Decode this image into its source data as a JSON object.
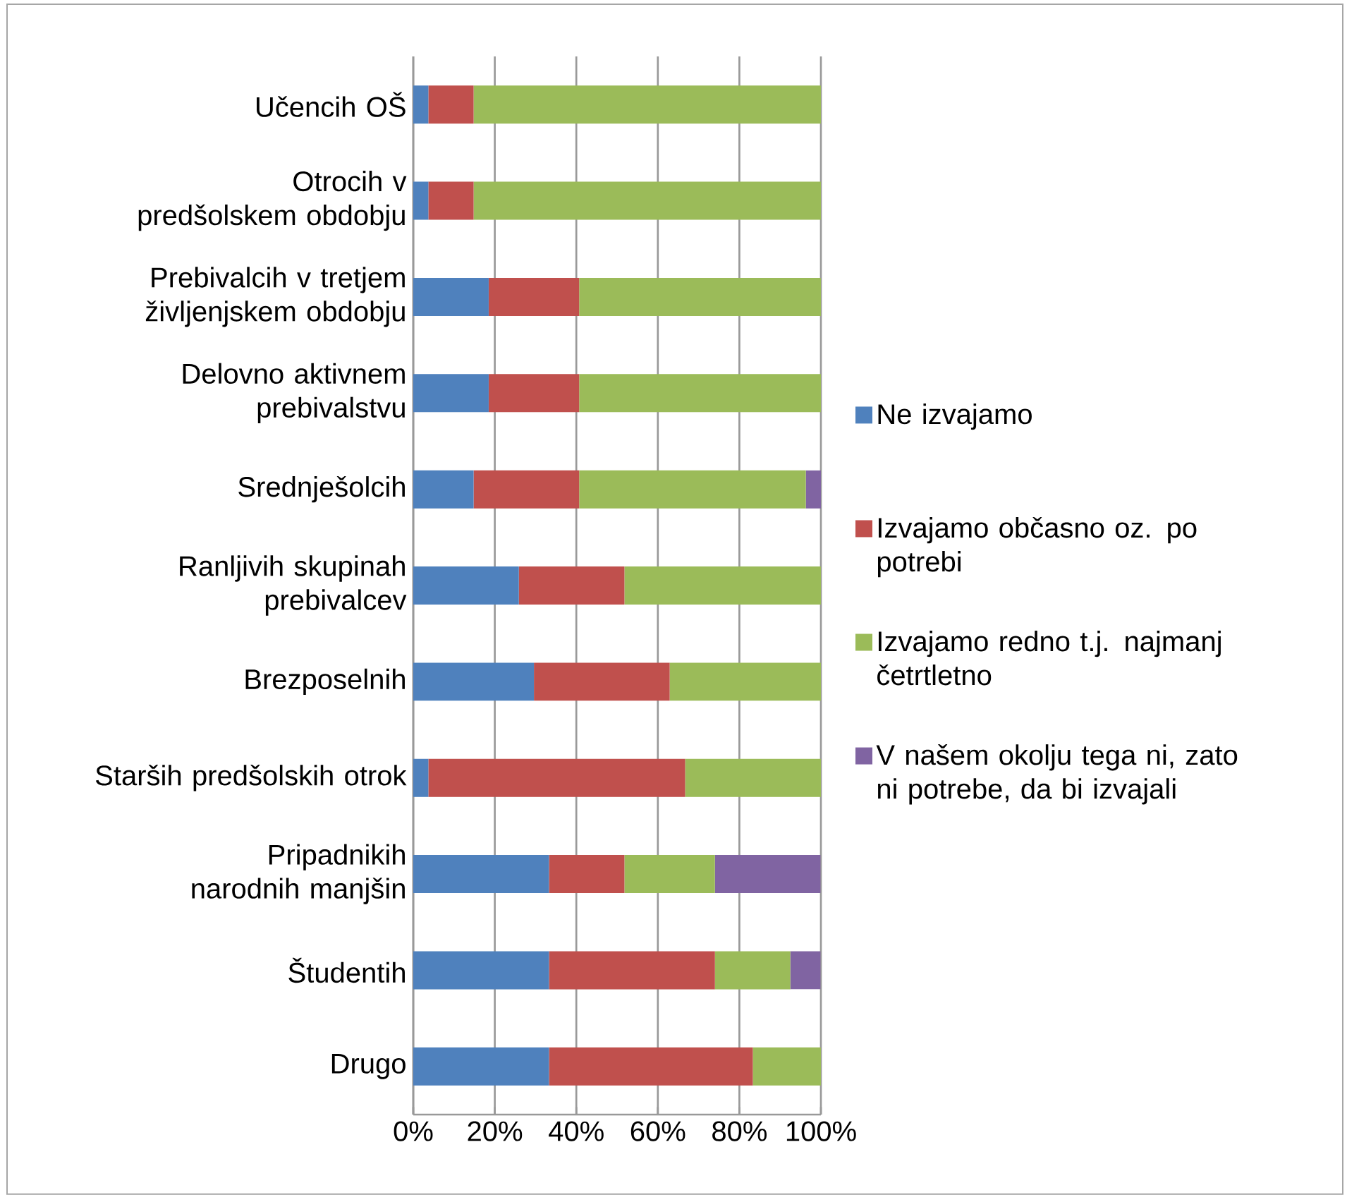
{
  "chart_data": {
    "type": "bar",
    "orientation": "horizontal",
    "stacked": true,
    "categories": [
      "Učencih OŠ",
      "Otrocih v predšolskem obdobju",
      "Prebivalcih v tretjem življenjskem obdobju",
      "Delovno aktivnem prebivalstvu",
      "Srednješolcih",
      "Ranljivih skupinah prebivalcev",
      "Brezposelnih",
      "Starših predšolskih otrok",
      "Pripadnikih narodnih manjšin",
      "Študentih",
      "Drugo"
    ],
    "series": [
      {
        "name": "Ne izvajamo",
        "color": "#4f81bd",
        "values": [
          3.7,
          3.7,
          18.5,
          18.5,
          14.8,
          25.9,
          29.6,
          3.7,
          33.3,
          33.3,
          33.3
        ]
      },
      {
        "name": "Izvajamo občasno oz. po potrebi",
        "color": "#c0504d",
        "values": [
          11.1,
          11.1,
          22.2,
          22.2,
          25.9,
          25.9,
          33.3,
          63.0,
          18.5,
          40.7,
          50.0
        ]
      },
      {
        "name": "Izvajamo redno t.j. najmanj četrtletno",
        "color": "#9bbb59",
        "values": [
          85.2,
          85.2,
          59.3,
          59.3,
          55.6,
          48.2,
          37.1,
          33.3,
          22.2,
          18.5,
          16.7
        ]
      },
      {
        "name": "V našem okolju tega ni, zato ni potrebe, da bi izvajali",
        "color": "#8064a2",
        "values": [
          0,
          0,
          0,
          0,
          3.7,
          0,
          0,
          0,
          25.9,
          7.4,
          0
        ]
      }
    ],
    "xlim": [
      0,
      100
    ],
    "xticks": [
      {
        "value": 0,
        "label": "0%"
      },
      {
        "value": 20,
        "label": "20%"
      },
      {
        "value": 40,
        "label": "40%"
      },
      {
        "value": 60,
        "label": "60%"
      },
      {
        "value": 80,
        "label": "80%"
      },
      {
        "value": 100,
        "label": "100%"
      }
    ],
    "grid": "x",
    "legend": "right"
  }
}
